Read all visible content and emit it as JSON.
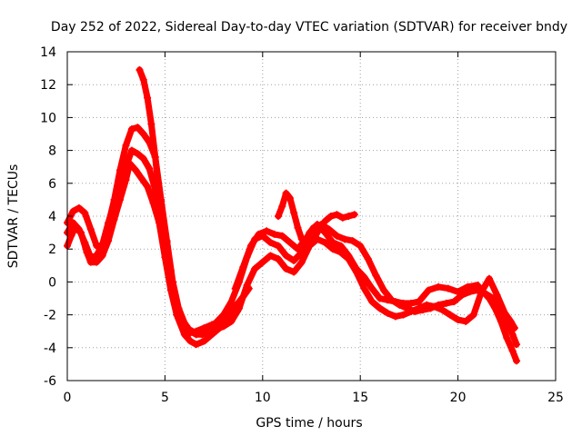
{
  "chart_data": {
    "type": "scatter",
    "title": "Day 252 of 2022, Sidereal Day-to-day VTEC variation (SDTVAR) for receiver bndy",
    "xlabel": "GPS time / hours",
    "ylabel": "SDTVAR / TECUs",
    "xlim": [
      0,
      25
    ],
    "ylim": [
      -6,
      14
    ],
    "xticks": [
      0,
      5,
      10,
      15,
      20,
      25
    ],
    "yticks": [
      -6,
      -4,
      -2,
      0,
      2,
      4,
      6,
      8,
      10,
      12,
      14
    ],
    "grid": true,
    "color": "#ff0000",
    "marker": "plus",
    "series": [
      {
        "name": "track-1",
        "x": [
          0,
          0.2,
          0.4,
          0.7,
          1.0,
          1.2,
          1.5,
          1.8,
          2.1,
          2.4,
          2.7,
          3.0,
          3.2,
          3.5,
          3.8,
          4.1,
          4.4,
          4.7,
          5.0,
          5.3,
          5.6,
          6.0,
          6.3,
          6.6,
          7.0,
          7.3,
          7.6,
          8.0,
          8.4,
          8.7
        ],
        "y": [
          2.2,
          2.8,
          3.3,
          3.0,
          1.8,
          1.2,
          1.2,
          1.6,
          2.5,
          3.8,
          5.0,
          6.2,
          7.2,
          6.8,
          6.3,
          5.8,
          4.8,
          3.6,
          1.5,
          -0.5,
          -2.0,
          -3.2,
          -3.6,
          -3.8,
          -3.6,
          -3.3,
          -3.0,
          -2.6,
          -2.2,
          -1.8
        ]
      },
      {
        "name": "track-2",
        "x": [
          0,
          0.3,
          0.6,
          0.9,
          1.2,
          1.5,
          1.8,
          2.1,
          2.4,
          2.7,
          3.0,
          3.3,
          3.6,
          3.9,
          4.2,
          4.5,
          4.8,
          5.1,
          5.4,
          5.7,
          6.0,
          6.3,
          6.6,
          7.0,
          7.4,
          7.8,
          8.2,
          8.6,
          9.0,
          9.3
        ],
        "y": [
          3.0,
          3.6,
          3.2,
          2.4,
          1.5,
          1.6,
          2.3,
          3.6,
          4.8,
          6.0,
          7.0,
          8.0,
          7.8,
          7.5,
          6.9,
          5.6,
          4.2,
          1.8,
          -0.6,
          -2.0,
          -2.8,
          -3.1,
          -3.0,
          -2.8,
          -2.6,
          -2.4,
          -2.0,
          -1.5,
          -0.9,
          -0.4
        ]
      },
      {
        "name": "track-3",
        "x": [
          0,
          0.3,
          0.6,
          0.9,
          1.2,
          1.5,
          1.8,
          2.1,
          2.4,
          2.7,
          3.0,
          3.3,
          3.6,
          3.9,
          4.2,
          4.5,
          4.8,
          5.1,
          5.4,
          5.7,
          6.0,
          6.3,
          6.6,
          6.9,
          7.2,
          7.6,
          8.0,
          8.4,
          8.8,
          9.2,
          9.6,
          10.0,
          10.4,
          10.8,
          11.2,
          11.6,
          12.0,
          12.4,
          12.8,
          13.2,
          13.6,
          14.0,
          14.4,
          14.8,
          15.2,
          15.6,
          16.0,
          16.4,
          16.8,
          17.2,
          17.6,
          18.0,
          18.4,
          18.8,
          19.2,
          19.6,
          20.0,
          20.4,
          20.8,
          21.2,
          21.6,
          22.0,
          22.4,
          22.7,
          22.9
        ],
        "y": [
          3.6,
          4.3,
          4.5,
          4.2,
          3.2,
          2.2,
          2.2,
          3.5,
          5.0,
          6.8,
          8.3,
          9.3,
          9.4,
          9.0,
          8.5,
          7.6,
          5.0,
          2.5,
          0.0,
          -1.6,
          -2.5,
          -3.0,
          -3.2,
          -3.2,
          -3.0,
          -2.9,
          -2.7,
          -2.4,
          -1.6,
          -0.2,
          0.8,
          1.2,
          1.6,
          1.4,
          0.8,
          0.6,
          1.2,
          2.2,
          2.6,
          2.4,
          2.0,
          1.8,
          1.4,
          0.6,
          -0.4,
          -1.2,
          -1.6,
          -1.9,
          -2.1,
          -2.0,
          -1.8,
          -1.6,
          -1.4,
          -1.5,
          -1.7,
          -2.0,
          -2.3,
          -2.4,
          -2.0,
          -0.6,
          0.2,
          -0.8,
          -1.9,
          -2.4,
          -2.8
        ]
      },
      {
        "name": "track-4",
        "x": [
          3.7,
          3.9,
          4.1,
          4.3,
          4.5,
          4.7,
          4.9,
          5.1,
          5.3,
          5.5,
          5.8,
          6.1,
          6.4,
          6.7,
          7.0,
          7.3,
          7.6,
          8.0,
          8.4,
          8.8,
          9.2,
          9.6,
          10.0,
          10.4,
          10.8,
          11.2,
          11.6,
          12.0,
          12.4,
          12.8,
          13.2,
          13.6,
          14.0,
          14.4,
          14.8,
          15.2,
          15.6,
          16.0,
          16.4,
          16.8,
          17.2,
          17.6,
          18.0,
          18.5,
          19.0,
          19.5,
          20.0,
          20.5,
          21.0,
          21.3,
          21.6,
          21.9,
          22.2,
          22.5,
          22.8,
          23.0
        ],
        "y": [
          12.9,
          12.3,
          11.2,
          9.6,
          7.6,
          5.4,
          3.8,
          2.4,
          0.7,
          -1.0,
          -2.2,
          -2.8,
          -3.0,
          -3.1,
          -2.9,
          -2.7,
          -2.5,
          -2.0,
          -1.2,
          0.0,
          1.5,
          2.6,
          2.8,
          2.4,
          2.2,
          1.6,
          1.3,
          1.8,
          3.0,
          3.5,
          3.0,
          2.4,
          2.2,
          1.6,
          0.8,
          0.3,
          -0.4,
          -1.0,
          -1.1,
          -1.2,
          -1.3,
          -1.3,
          -1.2,
          -0.5,
          -0.3,
          -0.4,
          -0.6,
          -0.3,
          -0.2,
          -0.6,
          -1.0,
          -1.6,
          -2.4,
          -3.4,
          -4.2,
          -4.8
        ]
      },
      {
        "name": "track-5",
        "x": [
          8.6,
          9.0,
          9.4,
          9.8,
          10.2,
          10.6,
          11.0,
          11.4,
          11.8,
          12.2,
          12.6,
          13.0,
          13.4,
          13.8,
          14.2,
          14.6,
          15.0,
          15.4,
          15.8,
          16.2,
          16.6,
          17.0,
          17.4,
          17.8,
          18.2,
          18.6,
          19.0,
          19.4,
          19.8,
          20.2,
          20.6,
          21.0,
          21.4,
          21.8,
          22.2,
          22.5,
          22.8,
          23.0
        ],
        "y": [
          -0.4,
          0.9,
          2.2,
          2.9,
          3.1,
          2.9,
          2.8,
          2.4,
          2.0,
          2.6,
          3.3,
          3.5,
          3.2,
          2.8,
          2.6,
          2.5,
          2.2,
          1.4,
          0.4,
          -0.5,
          -1.1,
          -1.4,
          -1.6,
          -1.8,
          -1.7,
          -1.6,
          -1.4,
          -1.3,
          -1.2,
          -0.8,
          -0.6,
          -0.5,
          -0.7,
          -1.0,
          -1.6,
          -2.4,
          -3.2,
          -3.8
        ]
      },
      {
        "name": "track-6",
        "x": [
          10.8,
          11.0,
          11.2,
          11.4,
          11.6,
          11.8,
          12.0,
          12.3,
          12.6,
          12.9,
          13.2,
          13.5,
          13.8,
          14.1,
          14.4,
          14.7
        ],
        "y": [
          4.0,
          4.6,
          5.4,
          5.1,
          4.2,
          3.3,
          2.6,
          2.4,
          2.6,
          3.2,
          3.7,
          4.0,
          4.1,
          3.9,
          4.0,
          4.1
        ]
      }
    ]
  }
}
